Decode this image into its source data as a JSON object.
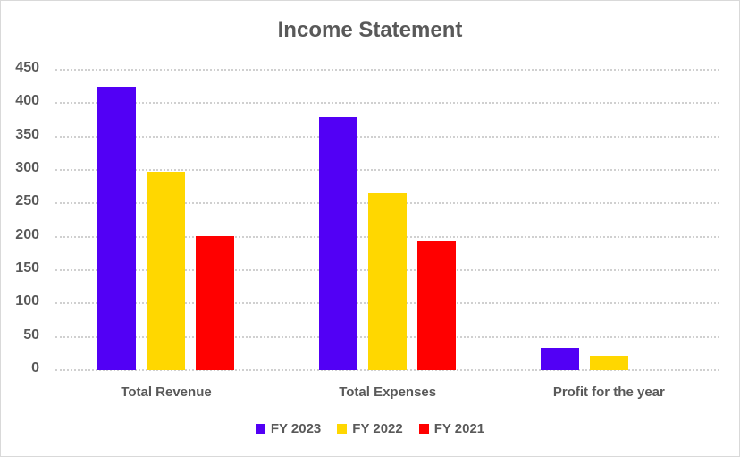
{
  "chart_data": {
    "type": "bar",
    "title": "Income Statement",
    "xlabel": "",
    "ylabel": "",
    "categories": [
      "Total Revenue",
      "Total Expenses",
      "Profit for the year"
    ],
    "series": [
      {
        "name": "FY 2023",
        "color": "#5200F5",
        "values": [
          425,
          379,
          33
        ]
      },
      {
        "name": "FY 2022",
        "color": "#FFD700",
        "values": [
          297,
          265,
          22
        ]
      },
      {
        "name": "FY 2021",
        "color": "#FF0000",
        "values": [
          201,
          194,
          0
        ]
      }
    ],
    "ylim": [
      0,
      450
    ],
    "yticks": [
      0,
      50,
      100,
      150,
      200,
      250,
      300,
      350,
      400,
      450
    ],
    "grid": true,
    "legend_position": "bottom"
  }
}
